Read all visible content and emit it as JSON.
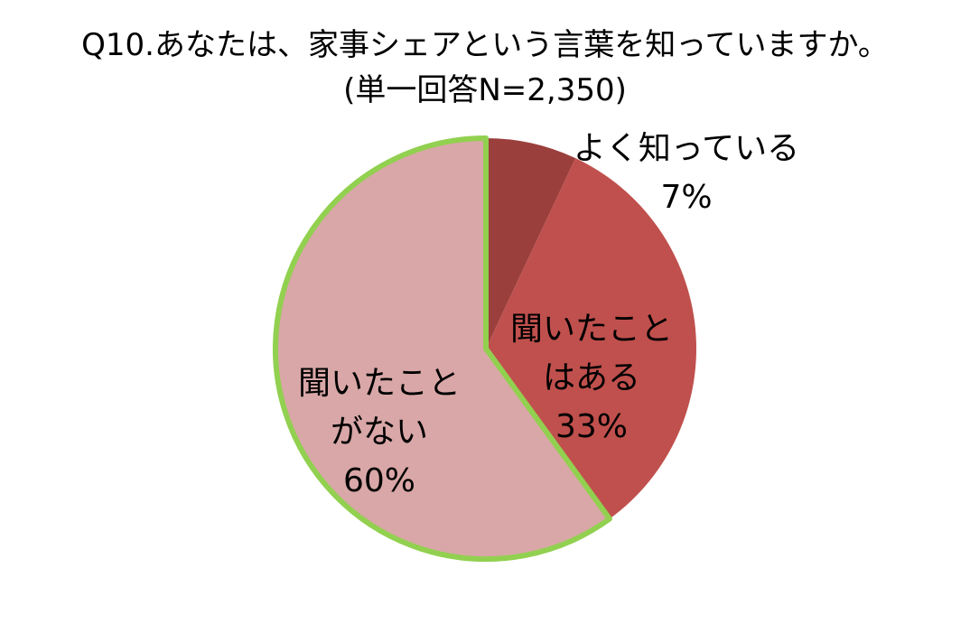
{
  "chart_data": {
    "type": "pie",
    "title": "Q10.あなたは、家事シェアという言葉を知っていますか。",
    "subtitle": "(単一回答N=2,350)",
    "categories": [
      "よく知っている",
      "聞いたことはある",
      "聞いたことがない"
    ],
    "values": [
      7,
      33,
      60
    ],
    "value_labels": [
      "7%",
      "33%",
      "60%"
    ],
    "colors": [
      "#9b3f3d",
      "#c0504d",
      "#d9a7a7"
    ],
    "edge_colors": [
      "none",
      "none",
      "#92d050"
    ]
  }
}
